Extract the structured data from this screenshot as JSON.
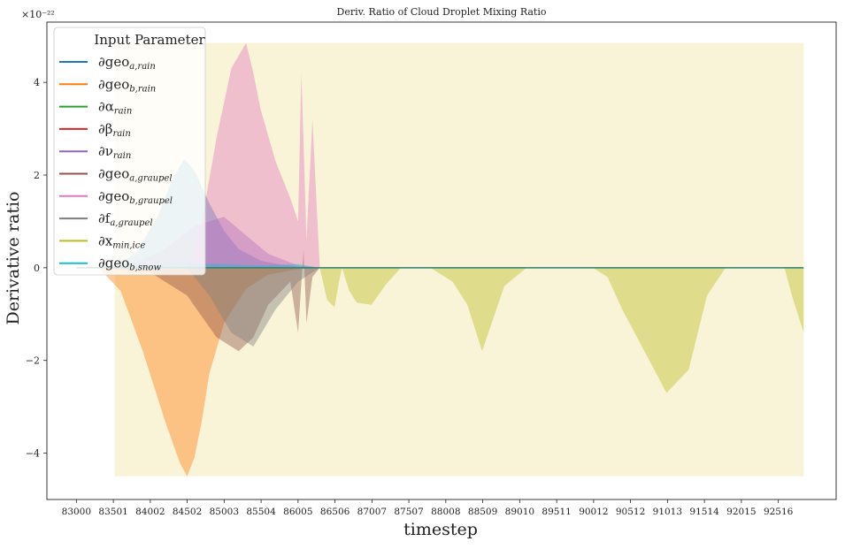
{
  "chart_data": {
    "type": "area",
    "title": "Deriv. Ratio of Cloud Droplet Mixing Ratio",
    "xlabel": "timestep",
    "ylabel": "Derivative ratio",
    "y_multiplier": "×10⁻²²",
    "xlim": [
      82600,
      93300
    ],
    "ylim": [
      -5.0,
      5.3
    ],
    "x_ticks": [
      83000,
      83501,
      84002,
      84502,
      85003,
      85504,
      86005,
      86506,
      87007,
      87507,
      88008,
      88509,
      89010,
      89511,
      90012,
      90512,
      91013,
      91514,
      92015,
      92516
    ],
    "x_tick_labels": [
      "83000",
      "83501",
      "84002",
      "84502",
      "85003",
      "85504",
      "86005",
      "86506",
      "87007",
      "87507",
      "88008",
      "88509",
      "89010",
      "89511",
      "90012",
      "90512",
      "91013",
      "91514",
      "92015",
      "92516"
    ],
    "y_ticks": [
      -4,
      -2,
      0,
      2,
      4
    ],
    "y_tick_labels": [
      "−4",
      "−2",
      "0",
      "2",
      "4"
    ],
    "grid": false,
    "legend": {
      "title": "Input Parameter",
      "position": "top-left",
      "entries": [
        {
          "base": "∂geo",
          "sub": "a,rain"
        },
        {
          "base": "∂geo",
          "sub": "b,rain"
        },
        {
          "base": "∂α",
          "sub": "rain"
        },
        {
          "base": "∂β",
          "sub": "rain"
        },
        {
          "base": "∂ν",
          "sub": "rain"
        },
        {
          "base": "∂geo",
          "sub": "a,graupel"
        },
        {
          "base": "∂geo",
          "sub": "b,graupel"
        },
        {
          "base": "∂f",
          "sub": "a,graupel"
        },
        {
          "base": "∂x",
          "sub": "min,ice"
        },
        {
          "base": "∂geo",
          "sub": "b,snow"
        }
      ]
    },
    "background_band": {
      "x": [
        83520,
        92860
      ],
      "y": [
        -4.5,
        4.85
      ],
      "color": "#f9f3d8"
    },
    "series": [
      {
        "color": "#1f77b4",
        "x": [
          83300,
          83500,
          83800,
          84100,
          84300,
          84460,
          84600,
          84800,
          85000,
          85200,
          85500,
          85800,
          86005,
          86300,
          92860
        ],
        "y": [
          0,
          0.05,
          0.3,
          1.1,
          1.9,
          2.35,
          2.1,
          1.4,
          0.8,
          0.4,
          0.15,
          0.06,
          0.02,
          0,
          0
        ]
      },
      {
        "color": "#ff7f0e",
        "x": [
          83300,
          83600,
          83900,
          84200,
          84400,
          84500,
          84600,
          84700,
          84800,
          85000,
          85300,
          85600,
          86005,
          86300,
          92860
        ],
        "y": [
          0,
          -0.5,
          -1.8,
          -3.3,
          -4.2,
          -4.5,
          -4.1,
          -3.3,
          -2.3,
          -1.2,
          -0.45,
          -0.15,
          -0.03,
          0,
          0
        ]
      },
      {
        "color": "#2ca02c",
        "x": [
          83000,
          92860
        ],
        "y": [
          0,
          0
        ]
      },
      {
        "color": "#d62728",
        "x": [
          83000,
          92860
        ],
        "y": [
          0,
          0
        ]
      },
      {
        "color": "#9467bd",
        "x": [
          83300,
          83800,
          84200,
          84600,
          85000,
          85300,
          85600,
          86005,
          86300,
          92860
        ],
        "y": [
          0,
          0.1,
          0.4,
          0.9,
          1.1,
          0.7,
          0.3,
          0.05,
          0,
          0
        ]
      },
      {
        "color": "#8c564b",
        "x": [
          83300,
          84000,
          84500,
          84900,
          85200,
          85400,
          85600,
          85900,
          86005,
          86080,
          86120,
          86200,
          86300,
          92860
        ],
        "y": [
          0,
          -0.1,
          -0.6,
          -1.5,
          -1.8,
          -1.5,
          -0.8,
          -0.3,
          -1.4,
          0.4,
          -1.2,
          -0.2,
          0,
          0
        ]
      },
      {
        "color": "#e377c2",
        "x": [
          84500,
          84700,
          84900,
          85100,
          85300,
          85400,
          85500,
          85700,
          85900,
          86005,
          86050,
          86120,
          86200,
          86300
        ],
        "y": [
          0,
          1.0,
          2.8,
          4.3,
          4.85,
          4.2,
          3.4,
          2.3,
          1.5,
          1.0,
          4.2,
          0.6,
          3.2,
          0
        ]
      },
      {
        "color": "#7f7f7f",
        "x": [
          84500,
          84800,
          85100,
          85400,
          85700,
          86005,
          86300
        ],
        "y": [
          0,
          -0.6,
          -1.4,
          -1.7,
          -0.9,
          -0.3,
          0
        ]
      },
      {
        "color": "#bcbd22",
        "x": [
          86300,
          86400,
          86500,
          86560,
          86600,
          86700,
          86800,
          87000,
          87200,
          87400,
          87600,
          87800,
          88100,
          88300,
          88500,
          88800,
          89100,
          89300,
          89500,
          89700,
          90000,
          90200,
          90400,
          90700,
          91000,
          91300,
          91550,
          91800,
          92000,
          92100,
          92300,
          92600,
          92700,
          92800,
          92860
        ],
        "y": [
          0,
          -0.7,
          -0.85,
          -0.3,
          0,
          -0.5,
          -0.75,
          -0.8,
          -0.35,
          0,
          0,
          0,
          -0.3,
          -0.8,
          -1.8,
          -0.4,
          0,
          0,
          0,
          0,
          0,
          -0.2,
          -0.9,
          -1.8,
          -2.7,
          -2.2,
          -0.6,
          0,
          0,
          0,
          0,
          0,
          -0.6,
          -1.1,
          -1.4
        ]
      },
      {
        "color": "#17becf",
        "x": [
          83300,
          84000,
          84500,
          85000,
          85500,
          86005,
          86300,
          92860
        ],
        "y": [
          0,
          0.05,
          0.1,
          0.08,
          0.05,
          0.08,
          0,
          0
        ]
      }
    ]
  }
}
